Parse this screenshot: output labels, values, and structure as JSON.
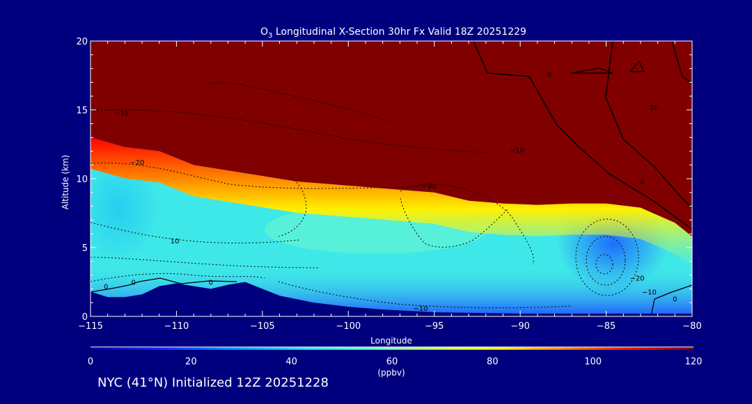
{
  "chart_data": {
    "type": "heatmap",
    "title_prefix": "O",
    "title_subscript": "3",
    "title_suffix": " Longitudinal X-Section 30hr  Fx Valid 18Z 20251229",
    "xlabel": "Longitude",
    "ylabel": "Altitude (km)",
    "xlim": [
      -115,
      -80
    ],
    "ylim": [
      0,
      20
    ],
    "x_ticks": [
      -115,
      -110,
      -105,
      -100,
      -95,
      -90,
      -85,
      -80
    ],
    "x_tick_labels": [
      "−115",
      "−110",
      "−105",
      "−100",
      "−95",
      "−90",
      "−85",
      "−80"
    ],
    "y_ticks": [
      0,
      5,
      10,
      15,
      20
    ],
    "y_tick_labels": [
      "0",
      "5",
      "10",
      "15",
      "20"
    ],
    "colorbar": {
      "range": [
        0,
        120
      ],
      "ticks": [
        0,
        20,
        40,
        60,
        80,
        100,
        120
      ],
      "tick_labels": [
        "0",
        "20",
        "40",
        "60",
        "80",
        "100",
        "120"
      ],
      "unit_label": "(ppbv)"
    },
    "tropopause_height_km": {
      "longitude": [
        -115,
        -113,
        -111,
        -109,
        -107,
        -105,
        -103,
        -101,
        -99,
        -97,
        -95,
        -93,
        -91,
        -89,
        -87,
        -85,
        -83,
        -81,
        -80
      ],
      "altitude": [
        13,
        12.3,
        12,
        11,
        10.6,
        10.2,
        9.8,
        9.6,
        9.4,
        9.2,
        9,
        8.4,
        8.2,
        8.1,
        8.2,
        8.2,
        7.9,
        6.8,
        5.8
      ]
    },
    "terrain_height_km": {
      "longitude": [
        -115,
        -114,
        -113,
        -112,
        -111,
        -110,
        -109,
        -108,
        -107,
        -106,
        -105,
        -104,
        -102,
        -100,
        -98,
        -95,
        -90,
        -85,
        -80
      ],
      "altitude": [
        1.8,
        1.4,
        1.4,
        1.6,
        2.2,
        2.4,
        2.2,
        2.0,
        2.3,
        2.5,
        2.0,
        1.5,
        1.0,
        0.7,
        0.5,
        0.3,
        0.2,
        0.2,
        0.2
      ]
    },
    "contour_labels": [
      {
        "text": "−10",
        "lon": -113.2,
        "alt": 14.8
      },
      {
        "text": "−20",
        "lon": -112.3,
        "alt": 11.2
      },
      {
        "text": "−10",
        "lon": -90.2,
        "alt": 12.1
      },
      {
        "text": "−20",
        "lon": -95.3,
        "alt": 9.5
      },
      {
        "text": "0",
        "lon": -88.3,
        "alt": 17.6
      },
      {
        "text": "10",
        "lon": -82.2,
        "alt": 15.2
      },
      {
        "text": "0",
        "lon": -82.9,
        "alt": 9.8
      },
      {
        "text": "10",
        "lon": -110.1,
        "alt": 5.5
      },
      {
        "text": "0",
        "lon": -114.1,
        "alt": 2.2
      },
      {
        "text": "0",
        "lon": -112.5,
        "alt": 2.5
      },
      {
        "text": "0",
        "lon": -108,
        "alt": 2.5
      },
      {
        "text": "−10",
        "lon": -95.8,
        "alt": 0.6
      },
      {
        "text": "−20",
        "lon": -83.2,
        "alt": 2.8
      },
      {
        "text": "−10",
        "lon": -82.5,
        "alt": 1.8
      },
      {
        "text": "0",
        "lon": -81.0,
        "alt": 1.3
      }
    ]
  },
  "colors": {
    "background": "#00007f",
    "stratosphere": "#800000",
    "terrain": "#00007f"
  },
  "footer": "NYC (41°N) Initialized 12Z 20251228"
}
